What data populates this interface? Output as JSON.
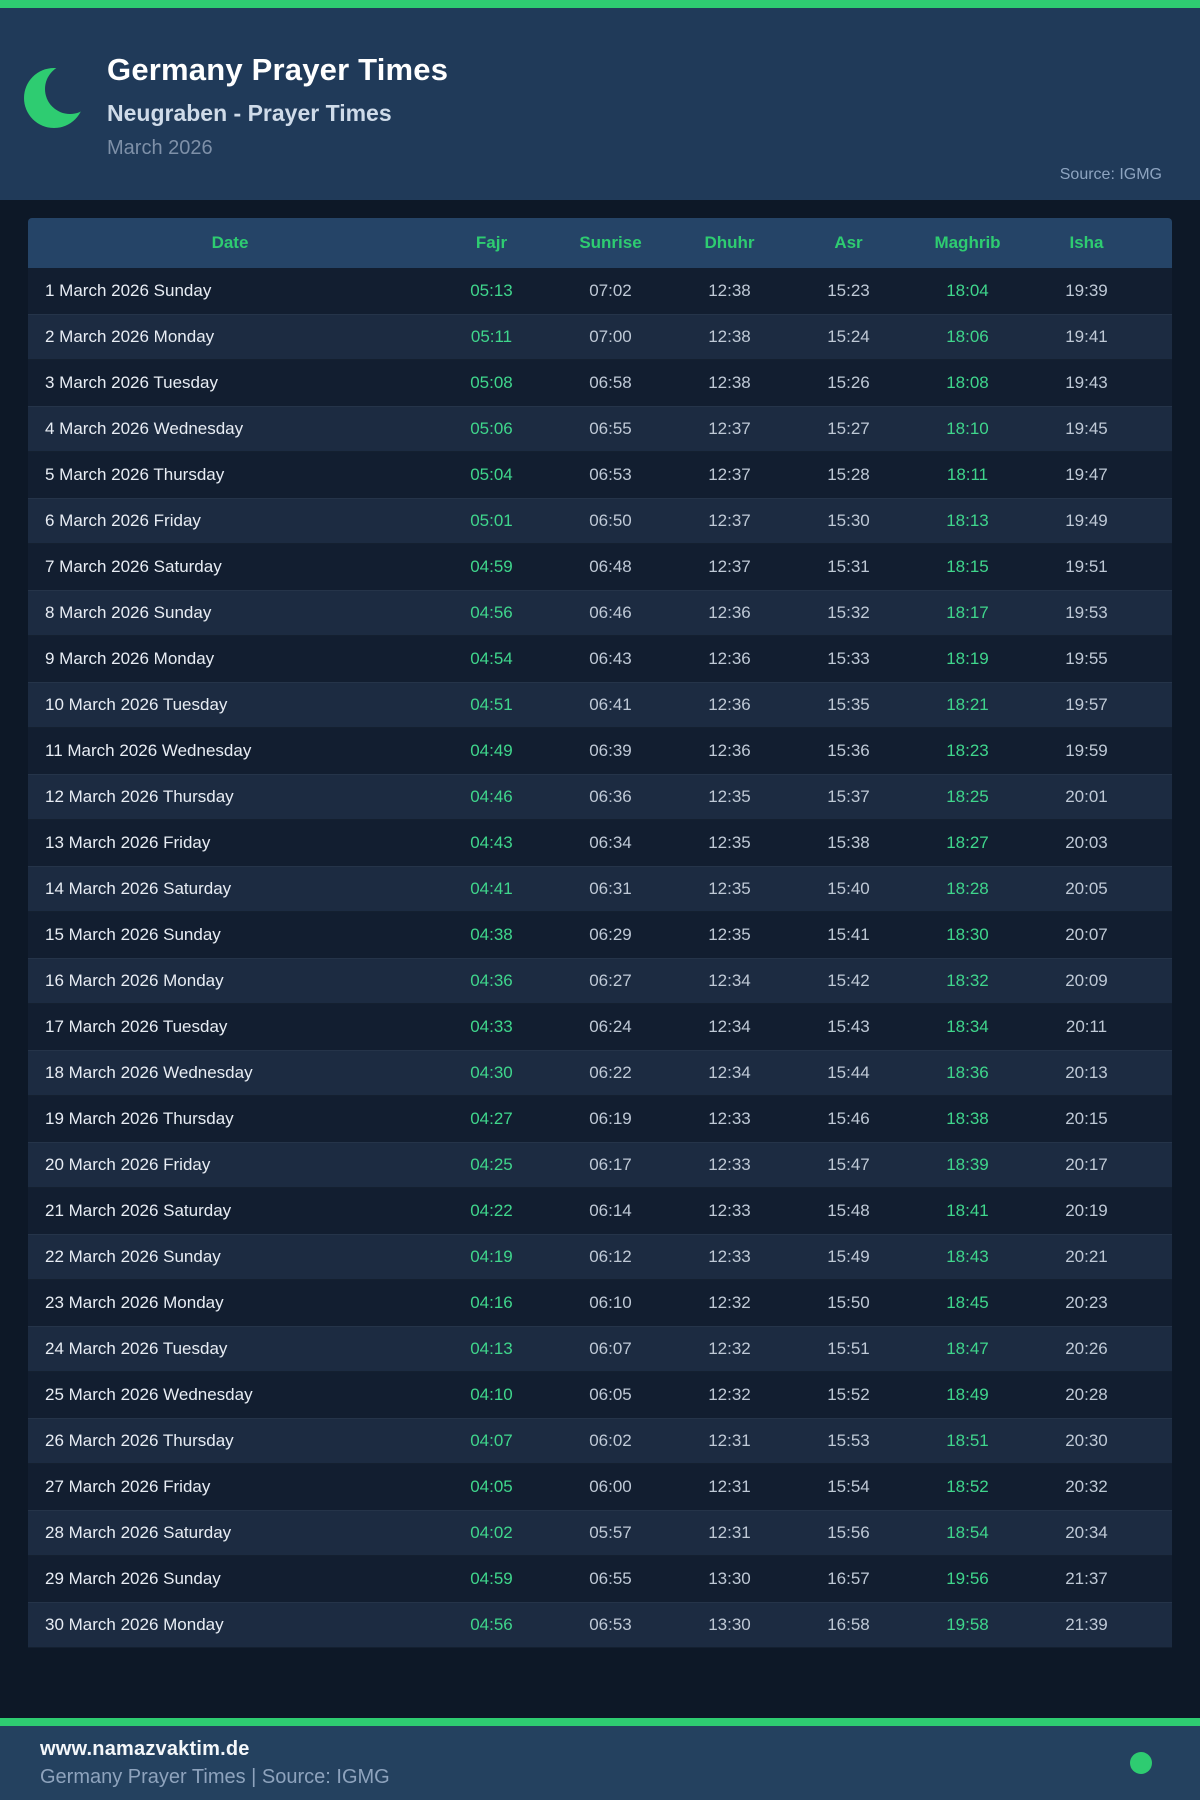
{
  "colors": {
    "accent_green": "#2ecc71",
    "value_green": "#3fd68c",
    "header_bg": "#203a59",
    "page_bg": "#0d1827",
    "table_header_bg": "#254467",
    "row_odd_bg": "#121e30",
    "row_even_bg": "#1c2b41",
    "footer_bg": "#24415f"
  },
  "header": {
    "icon": "crescent-moon-icon",
    "title": "Germany Prayer Times",
    "subtitle": "Neugraben - Prayer Times",
    "period": "March 2026",
    "source": "Source: IGMG"
  },
  "table": {
    "columns": [
      "Date",
      "Fajr",
      "Sunrise",
      "Dhuhr",
      "Asr",
      "Maghrib",
      "Isha"
    ],
    "rows": [
      [
        "1 March 2026 Sunday",
        "05:13",
        "07:02",
        "12:38",
        "15:23",
        "18:04",
        "19:39"
      ],
      [
        "2 March 2026 Monday",
        "05:11",
        "07:00",
        "12:38",
        "15:24",
        "18:06",
        "19:41"
      ],
      [
        "3 March 2026 Tuesday",
        "05:08",
        "06:58",
        "12:38",
        "15:26",
        "18:08",
        "19:43"
      ],
      [
        "4 March 2026 Wednesday",
        "05:06",
        "06:55",
        "12:37",
        "15:27",
        "18:10",
        "19:45"
      ],
      [
        "5 March 2026 Thursday",
        "05:04",
        "06:53",
        "12:37",
        "15:28",
        "18:11",
        "19:47"
      ],
      [
        "6 March 2026 Friday",
        "05:01",
        "06:50",
        "12:37",
        "15:30",
        "18:13",
        "19:49"
      ],
      [
        "7 March 2026 Saturday",
        "04:59",
        "06:48",
        "12:37",
        "15:31",
        "18:15",
        "19:51"
      ],
      [
        "8 March 2026 Sunday",
        "04:56",
        "06:46",
        "12:36",
        "15:32",
        "18:17",
        "19:53"
      ],
      [
        "9 March 2026 Monday",
        "04:54",
        "06:43",
        "12:36",
        "15:33",
        "18:19",
        "19:55"
      ],
      [
        "10 March 2026 Tuesday",
        "04:51",
        "06:41",
        "12:36",
        "15:35",
        "18:21",
        "19:57"
      ],
      [
        "11 March 2026 Wednesday",
        "04:49",
        "06:39",
        "12:36",
        "15:36",
        "18:23",
        "19:59"
      ],
      [
        "12 March 2026 Thursday",
        "04:46",
        "06:36",
        "12:35",
        "15:37",
        "18:25",
        "20:01"
      ],
      [
        "13 March 2026 Friday",
        "04:43",
        "06:34",
        "12:35",
        "15:38",
        "18:27",
        "20:03"
      ],
      [
        "14 March 2026 Saturday",
        "04:41",
        "06:31",
        "12:35",
        "15:40",
        "18:28",
        "20:05"
      ],
      [
        "15 March 2026 Sunday",
        "04:38",
        "06:29",
        "12:35",
        "15:41",
        "18:30",
        "20:07"
      ],
      [
        "16 March 2026 Monday",
        "04:36",
        "06:27",
        "12:34",
        "15:42",
        "18:32",
        "20:09"
      ],
      [
        "17 March 2026 Tuesday",
        "04:33",
        "06:24",
        "12:34",
        "15:43",
        "18:34",
        "20:11"
      ],
      [
        "18 March 2026 Wednesday",
        "04:30",
        "06:22",
        "12:34",
        "15:44",
        "18:36",
        "20:13"
      ],
      [
        "19 March 2026 Thursday",
        "04:27",
        "06:19",
        "12:33",
        "15:46",
        "18:38",
        "20:15"
      ],
      [
        "20 March 2026 Friday",
        "04:25",
        "06:17",
        "12:33",
        "15:47",
        "18:39",
        "20:17"
      ],
      [
        "21 March 2026 Saturday",
        "04:22",
        "06:14",
        "12:33",
        "15:48",
        "18:41",
        "20:19"
      ],
      [
        "22 March 2026 Sunday",
        "04:19",
        "06:12",
        "12:33",
        "15:49",
        "18:43",
        "20:21"
      ],
      [
        "23 March 2026 Monday",
        "04:16",
        "06:10",
        "12:32",
        "15:50",
        "18:45",
        "20:23"
      ],
      [
        "24 March 2026 Tuesday",
        "04:13",
        "06:07",
        "12:32",
        "15:51",
        "18:47",
        "20:26"
      ],
      [
        "25 March 2026 Wednesday",
        "04:10",
        "06:05",
        "12:32",
        "15:52",
        "18:49",
        "20:28"
      ],
      [
        "26 March 2026 Thursday",
        "04:07",
        "06:02",
        "12:31",
        "15:53",
        "18:51",
        "20:30"
      ],
      [
        "27 March 2026 Friday",
        "04:05",
        "06:00",
        "12:31",
        "15:54",
        "18:52",
        "20:32"
      ],
      [
        "28 March 2026 Saturday",
        "04:02",
        "05:57",
        "12:31",
        "15:56",
        "18:54",
        "20:34"
      ],
      [
        "29 March 2026 Sunday",
        "04:59",
        "06:55",
        "13:30",
        "16:57",
        "19:56",
        "21:37"
      ],
      [
        "30 March 2026 Monday",
        "04:56",
        "06:53",
        "13:30",
        "16:58",
        "19:58",
        "21:39"
      ]
    ]
  },
  "footer": {
    "website": "www.namazvaktim.de",
    "tagline": "Germany Prayer Times | Source: IGMG"
  }
}
